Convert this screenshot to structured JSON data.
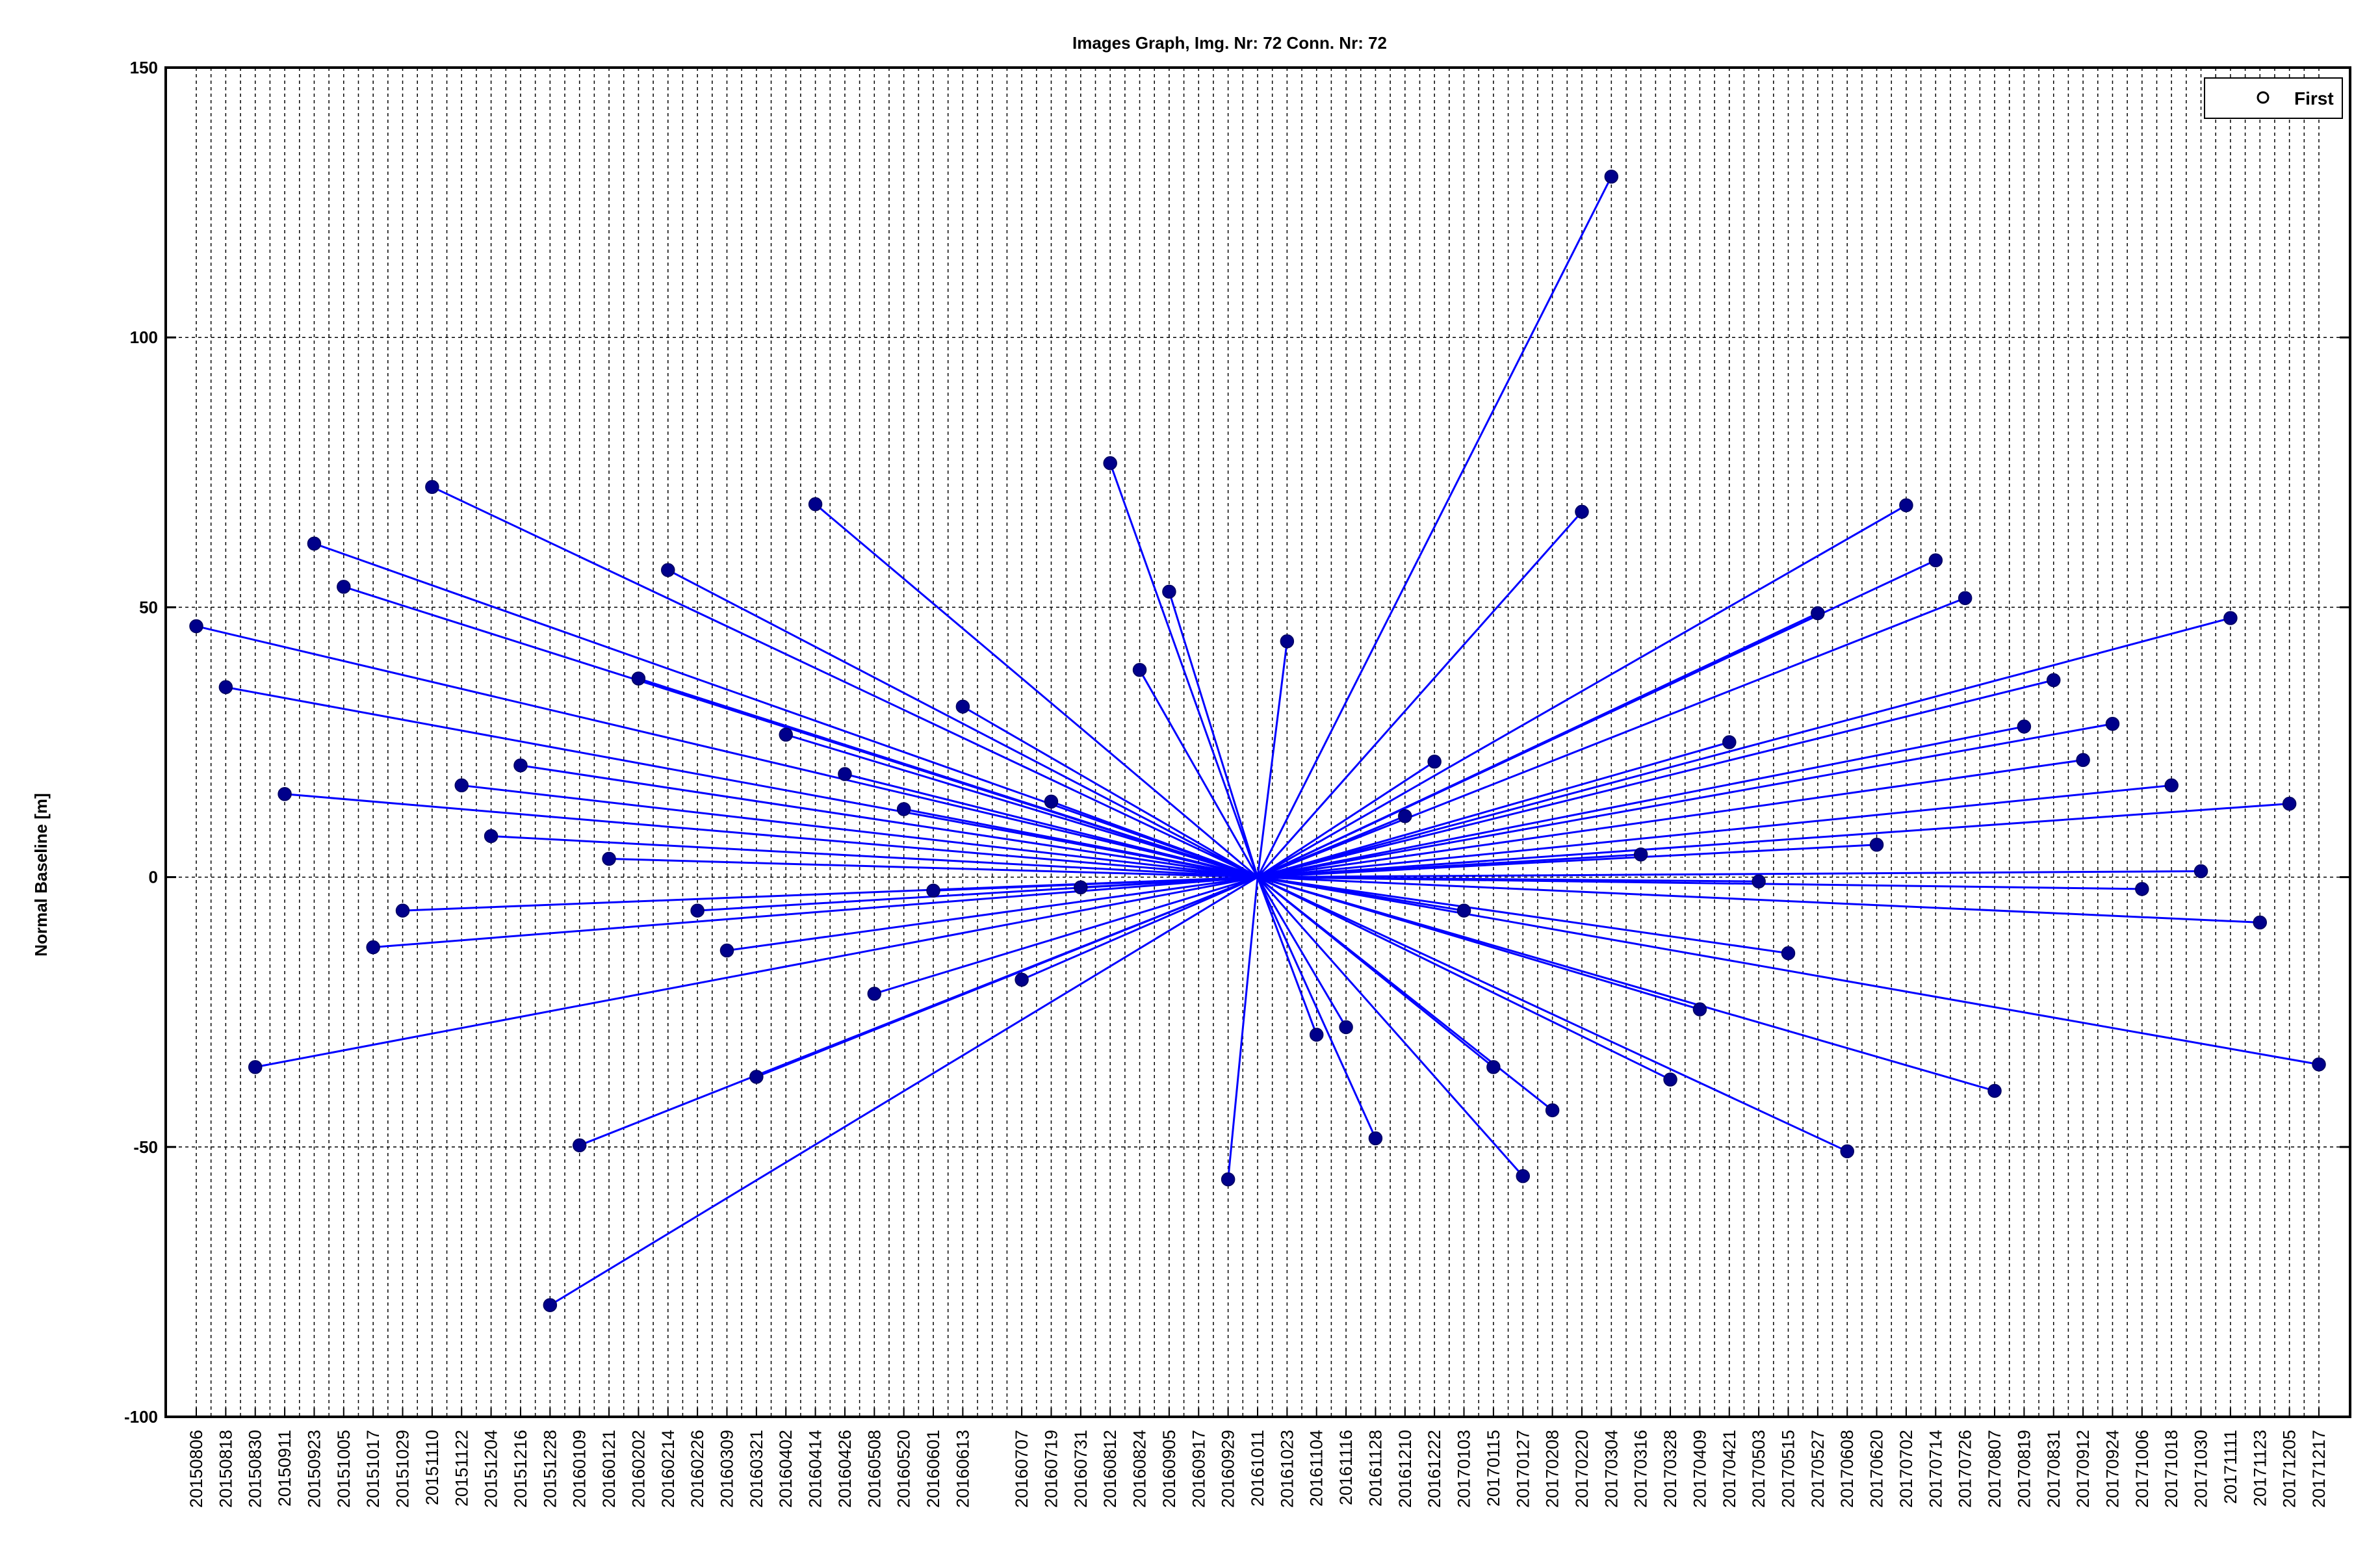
{
  "chart_data": {
    "type": "scatter",
    "title": "Images Graph, Img. Nr: 72 Conn. Nr: 72",
    "xlabel": "",
    "ylabel": "Normal Baseline [m]",
    "ylim": [
      -100,
      150
    ],
    "yticks": [
      -100,
      -50,
      0,
      50,
      100,
      150
    ],
    "grid": true,
    "legend": {
      "position": "top-right",
      "entries": [
        "First"
      ]
    },
    "colors": {
      "series": "#0000ff",
      "marker": "#00008b",
      "grid": "#000000"
    },
    "center": {
      "date": "20161011",
      "y": 0
    },
    "x_tick_labels": [
      "20150806",
      "20150818",
      "20150830",
      "20150911",
      "20150923",
      "20151005",
      "20151017",
      "20151029",
      "20151110",
      "20151122",
      "20151204",
      "20151216",
      "20151228",
      "20160109",
      "20160121",
      "20160202",
      "20160214",
      "20160226",
      "20160309",
      "20160321",
      "20160402",
      "20160414",
      "20160426",
      "20160508",
      "20160520",
      "20160601",
      "20160613",
      "20160707",
      "20160719",
      "20160731",
      "20160812",
      "20160824",
      "20160905",
      "20160917",
      "20160929",
      "20161011",
      "20161023",
      "20161104",
      "20161116",
      "20161128",
      "20161210",
      "20161222",
      "20170103",
      "20170115",
      "20170127",
      "20170208",
      "20170220",
      "20170304",
      "20170316",
      "20170328",
      "20170409",
      "20170421",
      "20170503",
      "20170515",
      "20170527",
      "20170608",
      "20170620",
      "20170702",
      "20170714",
      "20170726",
      "20170807",
      "20170819",
      "20170831",
      "20170912",
      "20170924",
      "20171006",
      "20171018",
      "20171030",
      "20171111",
      "20171123",
      "20171205",
      "20171217"
    ],
    "x_gridlines": [
      "20150806",
      "20150812",
      "20150818",
      "20150824",
      "20150830",
      "20150905",
      "20150911",
      "20150917",
      "20150923",
      "20150929",
      "20151005",
      "20151011",
      "20151017",
      "20151023",
      "20151029",
      "20151104",
      "20151110",
      "20151116",
      "20151122",
      "20151128",
      "20151204",
      "20151210",
      "20151216",
      "20151222",
      "20151228",
      "20160103",
      "20160109",
      "20160115",
      "20160121",
      "20160127",
      "20160202",
      "20160208",
      "20160214",
      "20160220",
      "20160226",
      "20160303",
      "20160309",
      "20160315",
      "20160321",
      "20160327",
      "20160402",
      "20160408",
      "20160414",
      "20160420",
      "20160426",
      "20160502",
      "20160508",
      "20160514",
      "20160520",
      "20160526",
      "20160601",
      "20160607",
      "20160613",
      "20160619",
      "20160625",
      "20160701",
      "20160707",
      "20160713",
      "20160719",
      "20160725",
      "20160731",
      "20160806",
      "20160812",
      "20160818",
      "20160824",
      "20160830",
      "20160905",
      "20160911",
      "20160917",
      "20160923",
      "20160929",
      "20161005",
      "20161011",
      "20161017",
      "20161023",
      "20161029",
      "20161104",
      "20161110",
      "20161116",
      "20161122",
      "20161128",
      "20161204",
      "20161210",
      "20161216",
      "20161222",
      "20161228",
      "20170103",
      "20170109",
      "20170115",
      "20170121",
      "20170127",
      "20170202",
      "20170208",
      "20170214",
      "20170220",
      "20170226",
      "20170304",
      "20170310",
      "20170316",
      "20170322",
      "20170328",
      "20170403",
      "20170409",
      "20170415",
      "20170421",
      "20170427",
      "20170503",
      "20170509",
      "20170515",
      "20170521",
      "20170527",
      "20170602",
      "20170608",
      "20170614",
      "20170620",
      "20170626",
      "20170702",
      "20170708",
      "20170714",
      "20170720",
      "20170726",
      "20170801",
      "20170807",
      "20170813",
      "20170819",
      "20170825",
      "20170831",
      "20170906",
      "20170912",
      "20170918",
      "20170924",
      "20170930",
      "20171006",
      "20171012",
      "20171018",
      "20171024",
      "20171030",
      "20171105",
      "20171111",
      "20171117",
      "20171123",
      "20171129",
      "20171205",
      "20171211",
      "20171217"
    ],
    "points": [
      {
        "x": "20150806",
        "y": 46.5
      },
      {
        "x": "20150818",
        "y": 35.2
      },
      {
        "x": "20150830",
        "y": -35.2
      },
      {
        "x": "20150911",
        "y": 15.4
      },
      {
        "x": "20150923",
        "y": 61.8
      },
      {
        "x": "20151005",
        "y": 53.8
      },
      {
        "x": "20151017",
        "y": -13.0
      },
      {
        "x": "20151029",
        "y": -6.2
      },
      {
        "x": "20151110",
        "y": 72.3
      },
      {
        "x": "20151122",
        "y": 17.0
      },
      {
        "x": "20151204",
        "y": 7.6
      },
      {
        "x": "20151216",
        "y": 20.7
      },
      {
        "x": "20151228",
        "y": -79.3
      },
      {
        "x": "20160109",
        "y": -49.7
      },
      {
        "x": "20160121",
        "y": 3.4
      },
      {
        "x": "20160202",
        "y": 36.8
      },
      {
        "x": "20160214",
        "y": 56.9
      },
      {
        "x": "20160226",
        "y": -6.2
      },
      {
        "x": "20160309",
        "y": -13.6
      },
      {
        "x": "20160321",
        "y": -37.0
      },
      {
        "x": "20160402",
        "y": 26.4
      },
      {
        "x": "20160414",
        "y": 69.1
      },
      {
        "x": "20160426",
        "y": 19.1
      },
      {
        "x": "20160508",
        "y": -21.6
      },
      {
        "x": "20160520",
        "y": 12.6
      },
      {
        "x": "20160601",
        "y": -2.5
      },
      {
        "x": "20160613",
        "y": 31.6
      },
      {
        "x": "20160707",
        "y": -19.0
      },
      {
        "x": "20160719",
        "y": 14.0
      },
      {
        "x": "20160731",
        "y": -1.9
      },
      {
        "x": "20160812",
        "y": 76.7
      },
      {
        "x": "20160824",
        "y": 38.4
      },
      {
        "x": "20160905",
        "y": 52.9
      },
      {
        "x": "20160929",
        "y": -56.0
      },
      {
        "x": "20161023",
        "y": 43.7
      },
      {
        "x": "20161104",
        "y": -29.2
      },
      {
        "x": "20161116",
        "y": -27.8
      },
      {
        "x": "20161128",
        "y": -48.4
      },
      {
        "x": "20161210",
        "y": 11.3
      },
      {
        "x": "20161222",
        "y": 21.4
      },
      {
        "x": "20170103",
        "y": -6.2
      },
      {
        "x": "20170115",
        "y": -35.2
      },
      {
        "x": "20170127",
        "y": -55.4
      },
      {
        "x": "20170208",
        "y": -43.2
      },
      {
        "x": "20170220",
        "y": 67.7
      },
      {
        "x": "20170304",
        "y": 129.8
      },
      {
        "x": "20170316",
        "y": 4.2
      },
      {
        "x": "20170328",
        "y": -37.5
      },
      {
        "x": "20170409",
        "y": -24.5
      },
      {
        "x": "20170421",
        "y": 25.0
      },
      {
        "x": "20170503",
        "y": -0.8
      },
      {
        "x": "20170515",
        "y": -14.1
      },
      {
        "x": "20170527",
        "y": 48.9
      },
      {
        "x": "20170608",
        "y": -50.8
      },
      {
        "x": "20170620",
        "y": 6.0
      },
      {
        "x": "20170702",
        "y": 68.9
      },
      {
        "x": "20170714",
        "y": 58.7
      },
      {
        "x": "20170726",
        "y": 51.7
      },
      {
        "x": "20170807",
        "y": -39.6
      },
      {
        "x": "20170819",
        "y": 27.9
      },
      {
        "x": "20170831",
        "y": 36.5
      },
      {
        "x": "20170912",
        "y": 21.7
      },
      {
        "x": "20170924",
        "y": 28.4
      },
      {
        "x": "20171006",
        "y": -2.2
      },
      {
        "x": "20171018",
        "y": 17.0
      },
      {
        "x": "20171030",
        "y": 1.1
      },
      {
        "x": "20171111",
        "y": 48.0
      },
      {
        "x": "20171123",
        "y": -8.4
      },
      {
        "x": "20171205",
        "y": 13.6
      },
      {
        "x": "20171217",
        "y": -34.7
      }
    ]
  }
}
